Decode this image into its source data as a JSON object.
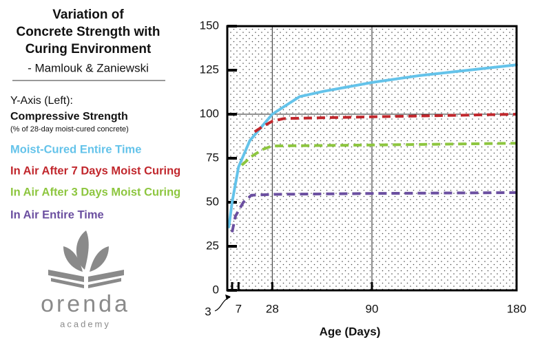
{
  "chart_data": {
    "type": "line",
    "title": [
      "Variation of",
      "Concrete Strength with",
      "Curing Environment"
    ],
    "subtitle": "- Mamlouk & Zaniewski",
    "y_label": [
      "Y-Axis (Left):",
      "Compressive Strength",
      "(% of 28-day moist-cured concrete)"
    ],
    "x_label": "Age (Days)",
    "xlim": [
      0,
      180
    ],
    "xticks": [
      3,
      7,
      28,
      90,
      180
    ],
    "ylim": [
      0,
      150
    ],
    "yticks": [
      0,
      25,
      50,
      75,
      100,
      125,
      150
    ],
    "grid_x": [
      28,
      90
    ],
    "grid_y": [
      100
    ],
    "series": [
      {
        "name": "Moist-Cured Entire Time",
        "color": "#64c3ea",
        "style": "solid",
        "x": [
          1,
          3,
          7,
          14,
          28,
          45,
          60,
          90,
          120,
          150,
          180
        ],
        "values": [
          36,
          50,
          70,
          85,
          100,
          110,
          113,
          118,
          122,
          125,
          128
        ]
      },
      {
        "name": "In Air After 7 Days Moist Curing",
        "color": "#c1272d",
        "style": "dashed",
        "x": [
          17,
          22,
          28,
          35,
          60,
          90,
          180
        ],
        "values": [
          90,
          93,
          96,
          97.5,
          98,
          98.5,
          100
        ]
      },
      {
        "name": "In Air After 3 Days Moist Curing",
        "color": "#8dc63f",
        "style": "dashed",
        "x": [
          9,
          15,
          22,
          28,
          90,
          180
        ],
        "values": [
          71,
          76,
          80,
          82,
          82.5,
          83.5
        ]
      },
      {
        "name": "In Air Entire Time",
        "color": "#6b4fa0",
        "style": "dashed",
        "x": [
          3,
          5,
          10,
          15,
          28,
          90,
          180
        ],
        "values": [
          33,
          42,
          50,
          54,
          54.5,
          55,
          55.5
        ]
      }
    ]
  },
  "logo": {
    "name": "orenda",
    "tagline": "academy"
  }
}
